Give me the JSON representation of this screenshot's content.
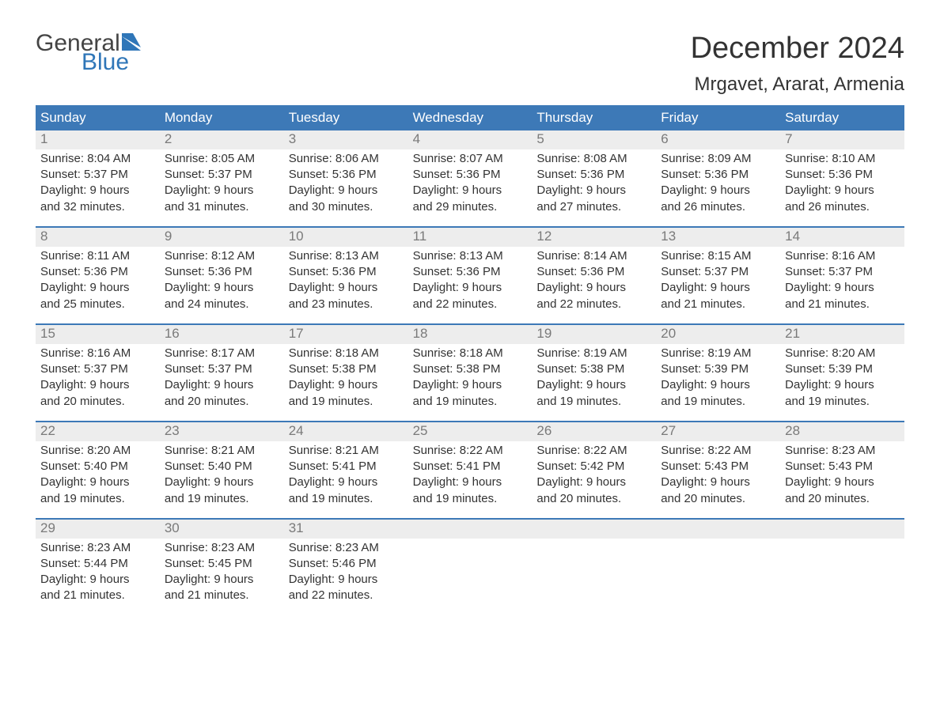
{
  "logo": {
    "general": "General",
    "blue": "Blue"
  },
  "title": "December 2024",
  "location": "Mrgavet, Ararat, Armenia",
  "colors": {
    "header_bg": "#3d79b7",
    "header_text": "#ffffff",
    "daynum_bg": "#ededed",
    "daynum_text": "#7a7a7a",
    "body_text": "#333333",
    "logo_blue": "#2f76b8",
    "logo_gray": "#444444",
    "background": "#ffffff"
  },
  "weekdays": [
    "Sunday",
    "Monday",
    "Tuesday",
    "Wednesday",
    "Thursday",
    "Friday",
    "Saturday"
  ],
  "layout": {
    "columns": 7,
    "rows": 5,
    "start_weekday_index": 0,
    "font_family": "Arial",
    "title_fontsize": 38,
    "location_fontsize": 24,
    "weekday_fontsize": 17,
    "daynum_fontsize": 17,
    "body_fontsize": 15
  },
  "days": [
    {
      "n": "1",
      "sunrise": "Sunrise: 8:04 AM",
      "sunset": "Sunset: 5:37 PM",
      "dl1": "Daylight: 9 hours",
      "dl2": "and 32 minutes."
    },
    {
      "n": "2",
      "sunrise": "Sunrise: 8:05 AM",
      "sunset": "Sunset: 5:37 PM",
      "dl1": "Daylight: 9 hours",
      "dl2": "and 31 minutes."
    },
    {
      "n": "3",
      "sunrise": "Sunrise: 8:06 AM",
      "sunset": "Sunset: 5:36 PM",
      "dl1": "Daylight: 9 hours",
      "dl2": "and 30 minutes."
    },
    {
      "n": "4",
      "sunrise": "Sunrise: 8:07 AM",
      "sunset": "Sunset: 5:36 PM",
      "dl1": "Daylight: 9 hours",
      "dl2": "and 29 minutes."
    },
    {
      "n": "5",
      "sunrise": "Sunrise: 8:08 AM",
      "sunset": "Sunset: 5:36 PM",
      "dl1": "Daylight: 9 hours",
      "dl2": "and 27 minutes."
    },
    {
      "n": "6",
      "sunrise": "Sunrise: 8:09 AM",
      "sunset": "Sunset: 5:36 PM",
      "dl1": "Daylight: 9 hours",
      "dl2": "and 26 minutes."
    },
    {
      "n": "7",
      "sunrise": "Sunrise: 8:10 AM",
      "sunset": "Sunset: 5:36 PM",
      "dl1": "Daylight: 9 hours",
      "dl2": "and 26 minutes."
    },
    {
      "n": "8",
      "sunrise": "Sunrise: 8:11 AM",
      "sunset": "Sunset: 5:36 PM",
      "dl1": "Daylight: 9 hours",
      "dl2": "and 25 minutes."
    },
    {
      "n": "9",
      "sunrise": "Sunrise: 8:12 AM",
      "sunset": "Sunset: 5:36 PM",
      "dl1": "Daylight: 9 hours",
      "dl2": "and 24 minutes."
    },
    {
      "n": "10",
      "sunrise": "Sunrise: 8:13 AM",
      "sunset": "Sunset: 5:36 PM",
      "dl1": "Daylight: 9 hours",
      "dl2": "and 23 minutes."
    },
    {
      "n": "11",
      "sunrise": "Sunrise: 8:13 AM",
      "sunset": "Sunset: 5:36 PM",
      "dl1": "Daylight: 9 hours",
      "dl2": "and 22 minutes."
    },
    {
      "n": "12",
      "sunrise": "Sunrise: 8:14 AM",
      "sunset": "Sunset: 5:36 PM",
      "dl1": "Daylight: 9 hours",
      "dl2": "and 22 minutes."
    },
    {
      "n": "13",
      "sunrise": "Sunrise: 8:15 AM",
      "sunset": "Sunset: 5:37 PM",
      "dl1": "Daylight: 9 hours",
      "dl2": "and 21 minutes."
    },
    {
      "n": "14",
      "sunrise": "Sunrise: 8:16 AM",
      "sunset": "Sunset: 5:37 PM",
      "dl1": "Daylight: 9 hours",
      "dl2": "and 21 minutes."
    },
    {
      "n": "15",
      "sunrise": "Sunrise: 8:16 AM",
      "sunset": "Sunset: 5:37 PM",
      "dl1": "Daylight: 9 hours",
      "dl2": "and 20 minutes."
    },
    {
      "n": "16",
      "sunrise": "Sunrise: 8:17 AM",
      "sunset": "Sunset: 5:37 PM",
      "dl1": "Daylight: 9 hours",
      "dl2": "and 20 minutes."
    },
    {
      "n": "17",
      "sunrise": "Sunrise: 8:18 AM",
      "sunset": "Sunset: 5:38 PM",
      "dl1": "Daylight: 9 hours",
      "dl2": "and 19 minutes."
    },
    {
      "n": "18",
      "sunrise": "Sunrise: 8:18 AM",
      "sunset": "Sunset: 5:38 PM",
      "dl1": "Daylight: 9 hours",
      "dl2": "and 19 minutes."
    },
    {
      "n": "19",
      "sunrise": "Sunrise: 8:19 AM",
      "sunset": "Sunset: 5:38 PM",
      "dl1": "Daylight: 9 hours",
      "dl2": "and 19 minutes."
    },
    {
      "n": "20",
      "sunrise": "Sunrise: 8:19 AM",
      "sunset": "Sunset: 5:39 PM",
      "dl1": "Daylight: 9 hours",
      "dl2": "and 19 minutes."
    },
    {
      "n": "21",
      "sunrise": "Sunrise: 8:20 AM",
      "sunset": "Sunset: 5:39 PM",
      "dl1": "Daylight: 9 hours",
      "dl2": "and 19 minutes."
    },
    {
      "n": "22",
      "sunrise": "Sunrise: 8:20 AM",
      "sunset": "Sunset: 5:40 PM",
      "dl1": "Daylight: 9 hours",
      "dl2": "and 19 minutes."
    },
    {
      "n": "23",
      "sunrise": "Sunrise: 8:21 AM",
      "sunset": "Sunset: 5:40 PM",
      "dl1": "Daylight: 9 hours",
      "dl2": "and 19 minutes."
    },
    {
      "n": "24",
      "sunrise": "Sunrise: 8:21 AM",
      "sunset": "Sunset: 5:41 PM",
      "dl1": "Daylight: 9 hours",
      "dl2": "and 19 minutes."
    },
    {
      "n": "25",
      "sunrise": "Sunrise: 8:22 AM",
      "sunset": "Sunset: 5:41 PM",
      "dl1": "Daylight: 9 hours",
      "dl2": "and 19 minutes."
    },
    {
      "n": "26",
      "sunrise": "Sunrise: 8:22 AM",
      "sunset": "Sunset: 5:42 PM",
      "dl1": "Daylight: 9 hours",
      "dl2": "and 20 minutes."
    },
    {
      "n": "27",
      "sunrise": "Sunrise: 8:22 AM",
      "sunset": "Sunset: 5:43 PM",
      "dl1": "Daylight: 9 hours",
      "dl2": "and 20 minutes."
    },
    {
      "n": "28",
      "sunrise": "Sunrise: 8:23 AM",
      "sunset": "Sunset: 5:43 PM",
      "dl1": "Daylight: 9 hours",
      "dl2": "and 20 minutes."
    },
    {
      "n": "29",
      "sunrise": "Sunrise: 8:23 AM",
      "sunset": "Sunset: 5:44 PM",
      "dl1": "Daylight: 9 hours",
      "dl2": "and 21 minutes."
    },
    {
      "n": "30",
      "sunrise": "Sunrise: 8:23 AM",
      "sunset": "Sunset: 5:45 PM",
      "dl1": "Daylight: 9 hours",
      "dl2": "and 21 minutes."
    },
    {
      "n": "31",
      "sunrise": "Sunrise: 8:23 AM",
      "sunset": "Sunset: 5:46 PM",
      "dl1": "Daylight: 9 hours",
      "dl2": "and 22 minutes."
    }
  ]
}
